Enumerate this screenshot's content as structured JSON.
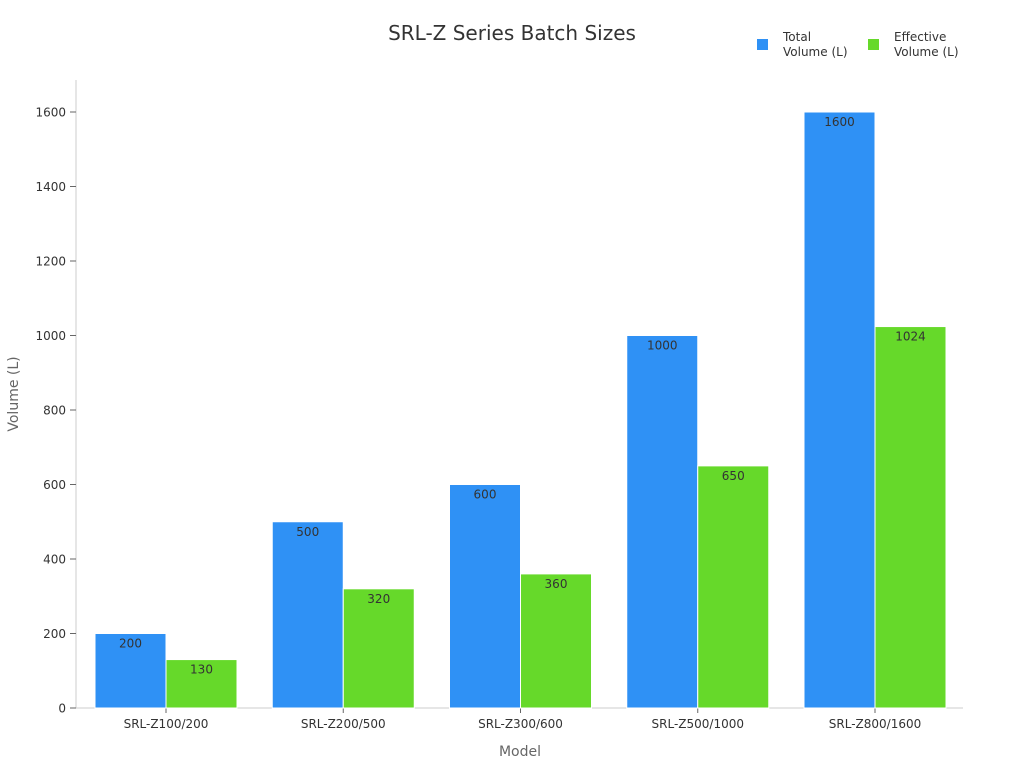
{
  "chart_data": {
    "type": "bar",
    "title": "SRL-Z Series Batch Sizes",
    "xlabel": "Model",
    "ylabel": "Volume (L)",
    "categories": [
      "SRL-Z100/200",
      "SRL-Z200/500",
      "SRL-Z300/600",
      "SRL-Z500/1000",
      "SRL-Z800/1600"
    ],
    "series": [
      {
        "name": "Total Volume (L)",
        "legend_lines": [
          "Total",
          "Volume (L)"
        ],
        "color": "#2F91F5",
        "values": [
          200,
          500,
          600,
          1000,
          1600
        ]
      },
      {
        "name": "Effective Volume (L)",
        "legend_lines": [
          "Effective",
          "Volume (L)"
        ],
        "color": "#66D92A",
        "values": [
          130,
          320,
          360,
          650,
          1024
        ]
      }
    ],
    "ylim": [
      0,
      1690
    ],
    "yticks": [
      0,
      200,
      400,
      600,
      800,
      1000,
      1200,
      1400,
      1600
    ],
    "grid": false,
    "legend_position": "top-right",
    "data_labels": true
  }
}
